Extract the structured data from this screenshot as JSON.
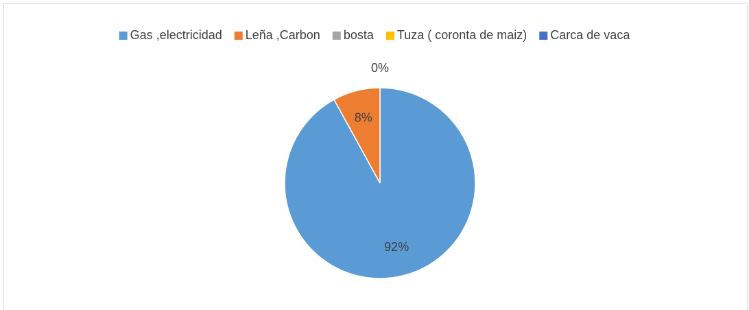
{
  "chart_data": {
    "type": "pie",
    "categories": [
      "Gas ,electricidad",
      "Leña ,Carbon",
      "bosta",
      "Tuza ( coronta de maiz)",
      "Carca de vaca"
    ],
    "values": [
      92,
      8,
      0,
      0,
      0
    ],
    "value_labels": [
      "92%",
      "8%",
      "0%",
      null,
      null
    ],
    "colors": [
      "#5b9bd5",
      "#ed7d31",
      "#a5a5a5",
      "#ffc000",
      "#4472c4"
    ],
    "legend": "top"
  }
}
